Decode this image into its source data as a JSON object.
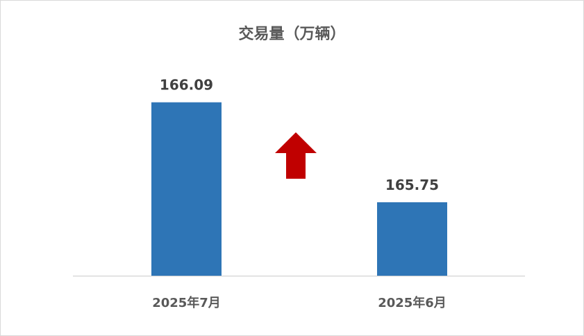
{
  "chart_data": {
    "type": "bar",
    "title": "交易量（万辆）",
    "categories": [
      "2025年7月",
      "2025年6月"
    ],
    "values": [
      166.09,
      165.75
    ],
    "data_labels": [
      "166.09",
      "165.75"
    ],
    "xlabel": "",
    "ylabel": "",
    "ylim": [
      165.5,
      166.2
    ],
    "grid": false,
    "legend": "none",
    "bar_color": "#2E75B6",
    "annotation": {
      "type": "up-arrow",
      "color": "#C00000"
    }
  }
}
